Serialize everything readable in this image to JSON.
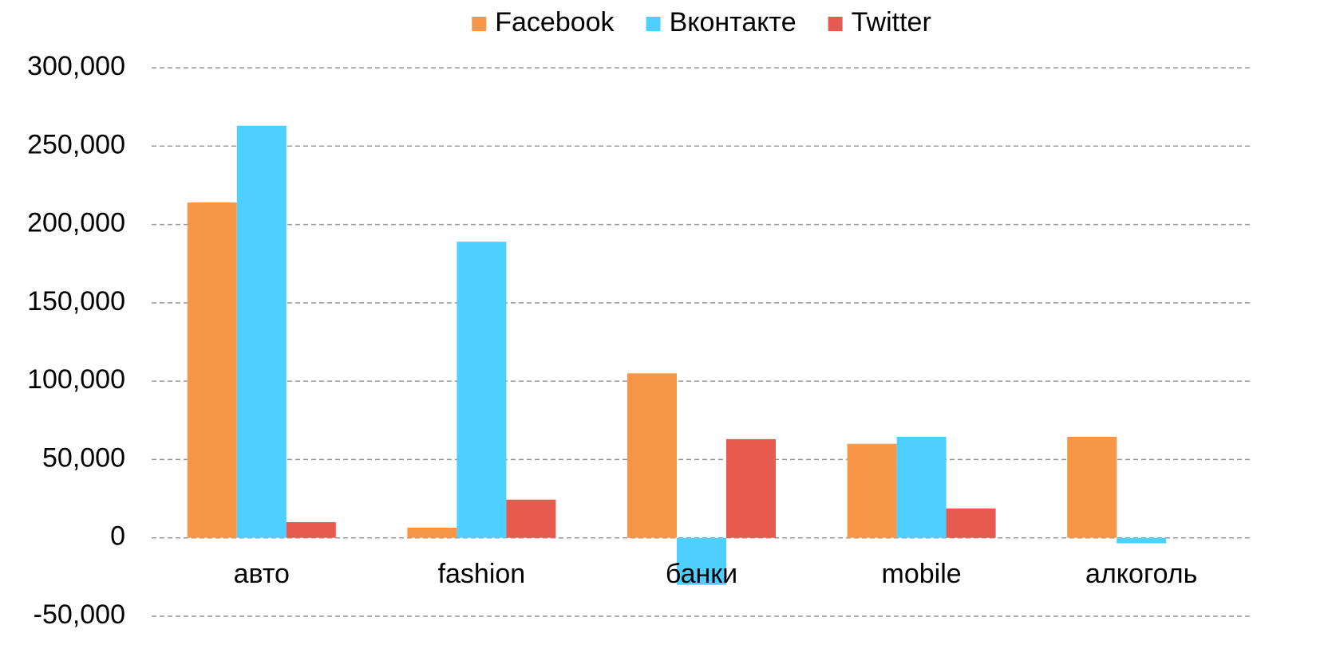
{
  "chart_data": {
    "type": "bar",
    "categories": [
      "авто",
      "fashion",
      "банки",
      "mobile",
      "алкоголь"
    ],
    "series": [
      {
        "name": "Facebook",
        "color": "#f79646",
        "values": [
          214000,
          6500,
          105000,
          60000,
          64500
        ]
      },
      {
        "name": "Вконтакте",
        "color": "#4dcfff",
        "values": [
          263000,
          189000,
          -30000,
          64500,
          -3500
        ]
      },
      {
        "name": "Twitter",
        "color": "#e65a50",
        "values": [
          10000,
          24400,
          63000,
          18800,
          null
        ]
      }
    ],
    "ylim": [
      -50000,
      300000
    ],
    "yticks": [
      {
        "value": -50000,
        "label": "-50,000"
      },
      0,
      {
        "value": 50000,
        "label": "50,000"
      },
      {
        "value": 100000,
        "label": "100,000"
      },
      {
        "value": 150000,
        "label": "150,000"
      },
      {
        "value": 200000,
        "label": "200,000"
      },
      {
        "value": 250000,
        "label": "250,000"
      },
      {
        "value": 300000,
        "label": "300,000"
      }
    ],
    "grid": true,
    "legend": "top"
  }
}
